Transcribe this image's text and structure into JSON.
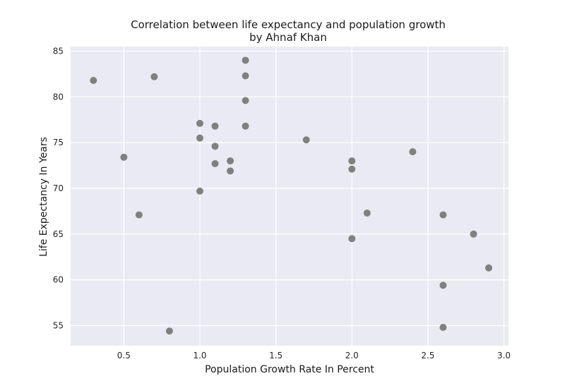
{
  "chart_data": {
    "type": "scatter",
    "title": "Correlation between life expectancy and population growth",
    "subtitle": "by Ahnaf Khan",
    "xlabel": "Population Growth Rate In Percent",
    "ylabel": "Life Expectancy In Years",
    "xlim": [
      0.15,
      3.03
    ],
    "ylim": [
      52.8,
      85.5
    ],
    "xticks": [
      "0.5",
      "1.0",
      "1.5",
      "2.0",
      "2.5",
      "3.0"
    ],
    "yticks": [
      "55",
      "60",
      "65",
      "70",
      "75",
      "80",
      "85"
    ],
    "grid": true,
    "background": "#eaeaf2",
    "point_color": "#808080",
    "points": [
      {
        "x": 0.3,
        "y": 81.8
      },
      {
        "x": 0.5,
        "y": 73.4
      },
      {
        "x": 0.6,
        "y": 67.1
      },
      {
        "x": 0.7,
        "y": 82.2
      },
      {
        "x": 0.8,
        "y": 54.4
      },
      {
        "x": 1.0,
        "y": 77.1
      },
      {
        "x": 1.0,
        "y": 75.5
      },
      {
        "x": 1.0,
        "y": 69.7
      },
      {
        "x": 1.1,
        "y": 76.8
      },
      {
        "x": 1.1,
        "y": 74.6
      },
      {
        "x": 1.1,
        "y": 72.7
      },
      {
        "x": 1.2,
        "y": 73.0
      },
      {
        "x": 1.2,
        "y": 71.9
      },
      {
        "x": 1.3,
        "y": 84.0
      },
      {
        "x": 1.3,
        "y": 82.3
      },
      {
        "x": 1.3,
        "y": 79.6
      },
      {
        "x": 1.3,
        "y": 76.8
      },
      {
        "x": 1.7,
        "y": 75.3
      },
      {
        "x": 2.0,
        "y": 73.0
      },
      {
        "x": 2.0,
        "y": 72.1
      },
      {
        "x": 2.0,
        "y": 64.5
      },
      {
        "x": 2.1,
        "y": 67.3
      },
      {
        "x": 2.4,
        "y": 74.0
      },
      {
        "x": 2.6,
        "y": 67.1
      },
      {
        "x": 2.6,
        "y": 59.4
      },
      {
        "x": 2.6,
        "y": 54.8
      },
      {
        "x": 2.8,
        "y": 65.0
      },
      {
        "x": 2.9,
        "y": 61.3
      }
    ]
  }
}
